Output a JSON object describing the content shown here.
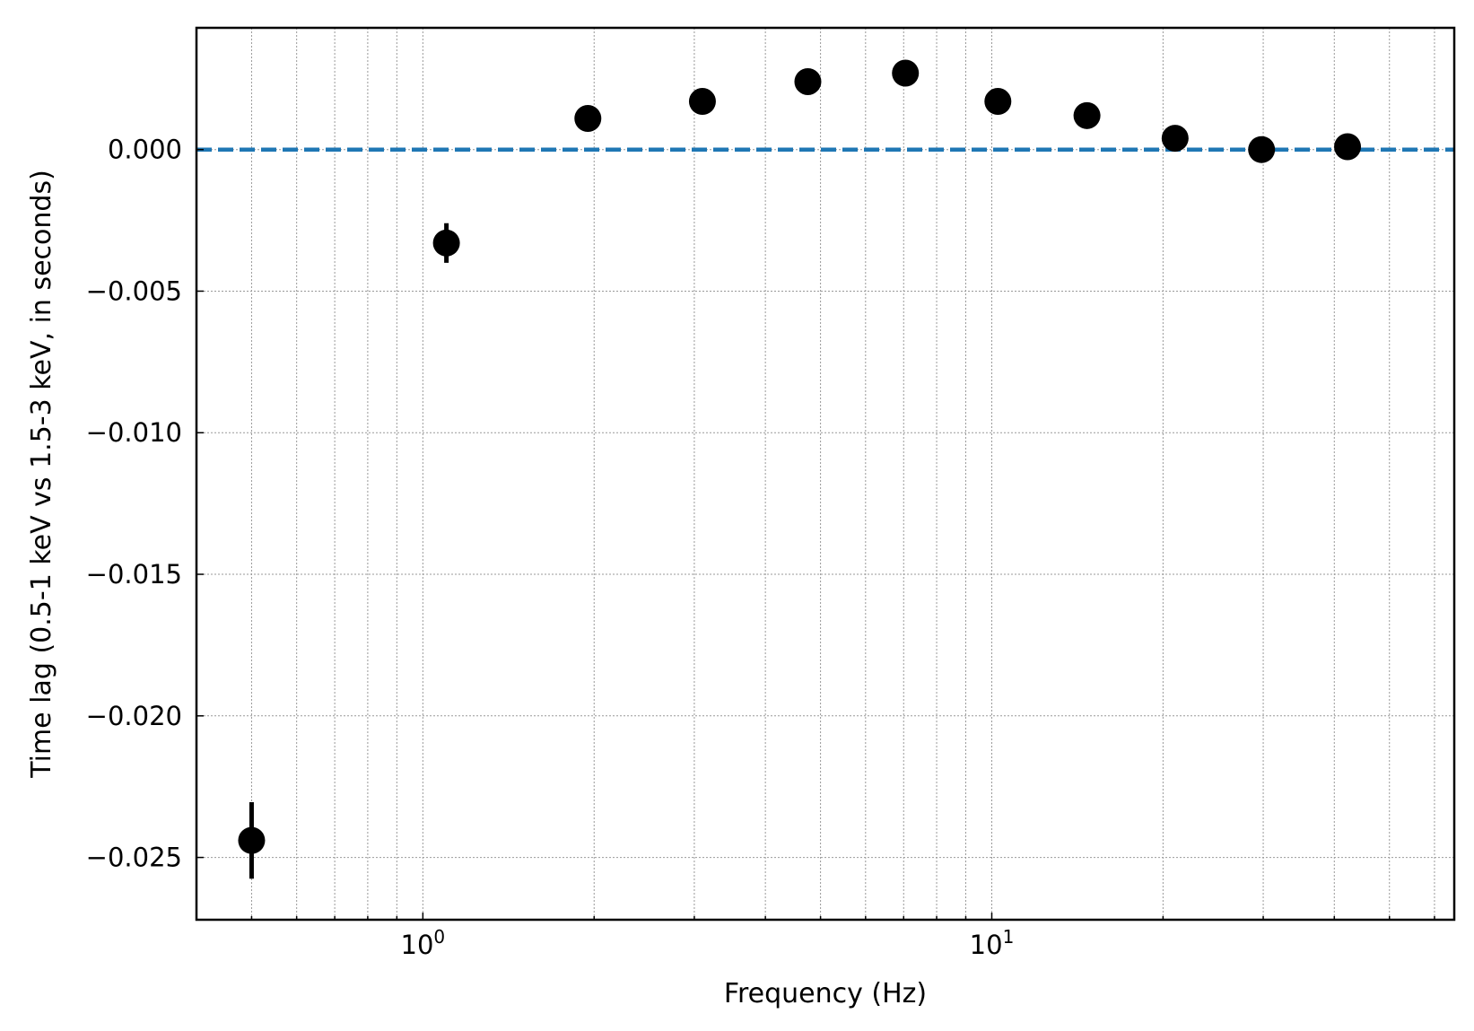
{
  "chart_data": {
    "type": "scatter",
    "xlabel": "Frequency (Hz)",
    "ylabel": "Time lag (0.5-1 keV vs 1.5-3 keV, in seconds)",
    "x_scale": "log",
    "xlim": [
      0.4,
      65
    ],
    "ylim": [
      -0.0272,
      0.0043
    ],
    "grid": true,
    "x_major_ticks": [
      {
        "value": 1,
        "base": "10",
        "exp": "0"
      },
      {
        "value": 10,
        "base": "10",
        "exp": "1"
      }
    ],
    "x_minor_ticks": [
      0.5,
      0.6,
      0.7,
      0.8,
      0.9,
      2,
      3,
      4,
      5,
      6,
      7,
      8,
      9,
      20,
      30,
      40,
      50,
      60
    ],
    "y_ticks": [
      {
        "value": 0.0,
        "label": "0.000"
      },
      {
        "value": -0.005,
        "label": "−0.005"
      },
      {
        "value": -0.01,
        "label": "−0.010"
      },
      {
        "value": -0.015,
        "label": "−0.015"
      },
      {
        "value": -0.02,
        "label": "−0.020"
      },
      {
        "value": -0.025,
        "label": "−0.025"
      }
    ],
    "points": [
      {
        "x": 0.5,
        "y": -0.0244,
        "yerr": 0.00135
      },
      {
        "x": 1.1,
        "y": -0.0033,
        "yerr": 0.0007
      },
      {
        "x": 1.95,
        "y": 0.0011,
        "yerr": 0.0002
      },
      {
        "x": 3.1,
        "y": 0.0017,
        "yerr": 0.0002
      },
      {
        "x": 4.75,
        "y": 0.0024,
        "yerr": 0.0002
      },
      {
        "x": 7.05,
        "y": 0.0027,
        "yerr": 0.0002
      },
      {
        "x": 10.25,
        "y": 0.0017,
        "yerr": 0.0002
      },
      {
        "x": 14.7,
        "y": 0.0012,
        "yerr": 0.0002
      },
      {
        "x": 21.0,
        "y": 0.0004,
        "yerr": 0.0002
      },
      {
        "x": 29.8,
        "y": 0.0,
        "yerr": 0.0002
      },
      {
        "x": 42.2,
        "y": 0.0001,
        "yerr": 0.0002
      }
    ],
    "reference_line": {
      "y": 0.0,
      "style": "dashed",
      "color": "#1f77b4"
    },
    "marker_color": "#000000"
  }
}
